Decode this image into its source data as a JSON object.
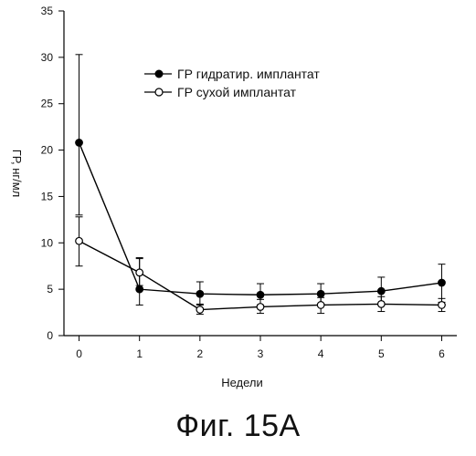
{
  "figure": {
    "caption": "Фиг. 15А"
  },
  "chart_data": {
    "type": "line",
    "xlabel": "Недели",
    "ylabel": "ГР, нг/мл",
    "x": [
      0,
      1,
      2,
      3,
      4,
      5,
      6
    ],
    "xticks": [
      "0",
      "1",
      "2",
      "3",
      "4",
      "5",
      "6"
    ],
    "ylim": [
      0,
      35
    ],
    "yticks": [
      "0",
      "5",
      "10",
      "15",
      "20",
      "25",
      "30",
      "35"
    ],
    "grid": false,
    "legend_position": "top-center",
    "series": [
      {
        "name": "ГР гидратир. имплантат",
        "marker": "filled-circle",
        "values": [
          20.8,
          5.0,
          4.5,
          4.4,
          4.5,
          4.8,
          5.7
        ],
        "err_low": [
          13.0,
          3.3,
          3.3,
          3.3,
          3.4,
          3.4,
          3.6
        ],
        "err_high": [
          30.3,
          8.4,
          5.8,
          5.6,
          5.6,
          6.3,
          7.7
        ]
      },
      {
        "name": "ГР сухой имплантат",
        "marker": "open-circle",
        "values": [
          10.2,
          6.8,
          2.8,
          3.1,
          3.3,
          3.4,
          3.3
        ],
        "err_low": [
          7.5,
          5.4,
          2.3,
          2.4,
          2.4,
          2.6,
          2.6
        ],
        "err_high": [
          12.8,
          8.3,
          3.4,
          3.9,
          4.1,
          4.2,
          4.0
        ]
      }
    ],
    "colors": {
      "axis": "#000000",
      "line": "#000000",
      "text": "#111111"
    }
  }
}
